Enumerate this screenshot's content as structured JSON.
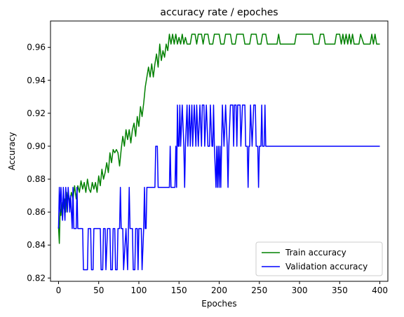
{
  "chart_data": {
    "type": "line",
    "title": "accuracy rate / epoches",
    "xlabel": "Epoches",
    "ylabel": "Accuracy",
    "xlim": [
      -10,
      410
    ],
    "ylim": [
      0.818,
      0.976
    ],
    "xticks": [
      0,
      50,
      100,
      150,
      200,
      250,
      300,
      350,
      400
    ],
    "yticks": [
      0.82,
      0.84,
      0.86,
      0.88,
      0.9,
      0.92,
      0.94,
      0.96
    ],
    "ytick_labels": [
      "0.82",
      "0.84",
      "0.86",
      "0.88",
      "0.90",
      "0.92",
      "0.94",
      "0.96"
    ],
    "grid": false,
    "legend_position": "lower-right",
    "series": [
      {
        "name": "Train accuracy",
        "color": "#008000",
        "points": [
          [
            0,
            0.851
          ],
          [
            1,
            0.841
          ],
          [
            2,
            0.862
          ],
          [
            3,
            0.858
          ],
          [
            4,
            0.866
          ],
          [
            5,
            0.856
          ],
          [
            6,
            0.87
          ],
          [
            7,
            0.862
          ],
          [
            8,
            0.868
          ],
          [
            9,
            0.86
          ],
          [
            10,
            0.872
          ],
          [
            11,
            0.866
          ],
          [
            12,
            0.872
          ],
          [
            14,
            0.866
          ],
          [
            16,
            0.872
          ],
          [
            18,
            0.868
          ],
          [
            20,
            0.876
          ],
          [
            22,
            0.868
          ],
          [
            24,
            0.876
          ],
          [
            26,
            0.872
          ],
          [
            28,
            0.879
          ],
          [
            30,
            0.874
          ],
          [
            32,
            0.878
          ],
          [
            34,
            0.872
          ],
          [
            36,
            0.88
          ],
          [
            38,
            0.874
          ],
          [
            40,
            0.872
          ],
          [
            42,
            0.878
          ],
          [
            44,
            0.874
          ],
          [
            46,
            0.878
          ],
          [
            48,
            0.872
          ],
          [
            50,
            0.882
          ],
          [
            52,
            0.876
          ],
          [
            54,
            0.886
          ],
          [
            56,
            0.88
          ],
          [
            58,
            0.884
          ],
          [
            60,
            0.89
          ],
          [
            62,
            0.884
          ],
          [
            64,
            0.896
          ],
          [
            66,
            0.89
          ],
          [
            68,
            0.898
          ],
          [
            70,
            0.896
          ],
          [
            72,
            0.898
          ],
          [
            74,
            0.896
          ],
          [
            76,
            0.888
          ],
          [
            78,
            0.898
          ],
          [
            80,
            0.906
          ],
          [
            82,
            0.9
          ],
          [
            84,
            0.91
          ],
          [
            86,
            0.904
          ],
          [
            88,
            0.91
          ],
          [
            90,
            0.902
          ],
          [
            92,
            0.91
          ],
          [
            94,
            0.914
          ],
          [
            96,
            0.906
          ],
          [
            98,
            0.918
          ],
          [
            100,
            0.912
          ],
          [
            102,
            0.924
          ],
          [
            104,
            0.918
          ],
          [
            106,
            0.926
          ],
          [
            108,
            0.936
          ],
          [
            110,
            0.942
          ],
          [
            112,
            0.948
          ],
          [
            114,
            0.942
          ],
          [
            116,
            0.95
          ],
          [
            118,
            0.942
          ],
          [
            120,
            0.95
          ],
          [
            122,
            0.956
          ],
          [
            124,
            0.948
          ],
          [
            126,
            0.962
          ],
          [
            128,
            0.952
          ],
          [
            130,
            0.958
          ],
          [
            132,
            0.954
          ],
          [
            134,
            0.962
          ],
          [
            136,
            0.958
          ],
          [
            138,
            0.968
          ],
          [
            140,
            0.962
          ],
          [
            142,
            0.968
          ],
          [
            144,
            0.962
          ],
          [
            146,
            0.968
          ],
          [
            148,
            0.962
          ],
          [
            150,
            0.966
          ],
          [
            152,
            0.962
          ],
          [
            154,
            0.968
          ],
          [
            156,
            0.962
          ],
          [
            158,
            0.966
          ],
          [
            160,
            0.962
          ],
          [
            164,
            0.962
          ],
          [
            166,
            0.968
          ],
          [
            170,
            0.968
          ],
          [
            172,
            0.962
          ],
          [
            174,
            0.968
          ],
          [
            178,
            0.968
          ],
          [
            180,
            0.962
          ],
          [
            182,
            0.968
          ],
          [
            186,
            0.968
          ],
          [
            188,
            0.962
          ],
          [
            192,
            0.962
          ],
          [
            194,
            0.968
          ],
          [
            200,
            0.968
          ],
          [
            202,
            0.962
          ],
          [
            206,
            0.962
          ],
          [
            208,
            0.968
          ],
          [
            214,
            0.968
          ],
          [
            216,
            0.962
          ],
          [
            220,
            0.962
          ],
          [
            222,
            0.968
          ],
          [
            230,
            0.968
          ],
          [
            232,
            0.962
          ],
          [
            238,
            0.962
          ],
          [
            240,
            0.968
          ],
          [
            246,
            0.968
          ],
          [
            248,
            0.962
          ],
          [
            252,
            0.962
          ],
          [
            254,
            0.968
          ],
          [
            258,
            0.968
          ],
          [
            260,
            0.962
          ],
          [
            272,
            0.962
          ],
          [
            274,
            0.968
          ],
          [
            276,
            0.962
          ],
          [
            294,
            0.962
          ],
          [
            296,
            0.968
          ],
          [
            316,
            0.968
          ],
          [
            318,
            0.962
          ],
          [
            324,
            0.962
          ],
          [
            326,
            0.968
          ],
          [
            330,
            0.968
          ],
          [
            332,
            0.962
          ],
          [
            344,
            0.962
          ],
          [
            346,
            0.968
          ],
          [
            350,
            0.968
          ],
          [
            352,
            0.962
          ],
          [
            354,
            0.968
          ],
          [
            356,
            0.962
          ],
          [
            358,
            0.968
          ],
          [
            360,
            0.962
          ],
          [
            362,
            0.968
          ],
          [
            364,
            0.962
          ],
          [
            366,
            0.968
          ],
          [
            368,
            0.962
          ],
          [
            374,
            0.962
          ],
          [
            376,
            0.968
          ],
          [
            380,
            0.962
          ],
          [
            388,
            0.962
          ],
          [
            390,
            0.968
          ],
          [
            392,
            0.962
          ],
          [
            394,
            0.968
          ],
          [
            396,
            0.962
          ],
          [
            400,
            0.962
          ]
        ]
      },
      {
        "name": "Validation accuracy",
        "color": "#0000ff",
        "points": [
          [
            0,
            0.85
          ],
          [
            1,
            0.875
          ],
          [
            2,
            0.86
          ],
          [
            3,
            0.875
          ],
          [
            5,
            0.855
          ],
          [
            6,
            0.875
          ],
          [
            8,
            0.855
          ],
          [
            9,
            0.875
          ],
          [
            11,
            0.86
          ],
          [
            12,
            0.875
          ],
          [
            14,
            0.86
          ],
          [
            15,
            0.87
          ],
          [
            17,
            0.85
          ],
          [
            18,
            0.875
          ],
          [
            19,
            0.85
          ],
          [
            22,
            0.85
          ],
          [
            23,
            0.875
          ],
          [
            24,
            0.85
          ],
          [
            30,
            0.85
          ],
          [
            31,
            0.825
          ],
          [
            36,
            0.825
          ],
          [
            37,
            0.85
          ],
          [
            40,
            0.85
          ],
          [
            41,
            0.825
          ],
          [
            43,
            0.825
          ],
          [
            44,
            0.85
          ],
          [
            52,
            0.85
          ],
          [
            53,
            0.825
          ],
          [
            55,
            0.825
          ],
          [
            56,
            0.85
          ],
          [
            58,
            0.85
          ],
          [
            59,
            0.825
          ],
          [
            61,
            0.85
          ],
          [
            64,
            0.85
          ],
          [
            65,
            0.825
          ],
          [
            67,
            0.825
          ],
          [
            68,
            0.85
          ],
          [
            70,
            0.85
          ],
          [
            71,
            0.825
          ],
          [
            73,
            0.825
          ],
          [
            74,
            0.85
          ],
          [
            76,
            0.85
          ],
          [
            77,
            0.875
          ],
          [
            78,
            0.85
          ],
          [
            80,
            0.85
          ],
          [
            81,
            0.825
          ],
          [
            84,
            0.85
          ],
          [
            86,
            0.825
          ],
          [
            88,
            0.875
          ],
          [
            89,
            0.85
          ],
          [
            92,
            0.85
          ],
          [
            93,
            0.825
          ],
          [
            95,
            0.825
          ],
          [
            96,
            0.85
          ],
          [
            98,
            0.85
          ],
          [
            99,
            0.825
          ],
          [
            100,
            0.85
          ],
          [
            103,
            0.85
          ],
          [
            104,
            0.825
          ],
          [
            106,
            0.85
          ],
          [
            107,
            0.875
          ],
          [
            108,
            0.85
          ],
          [
            109,
            0.85
          ],
          [
            110,
            0.875
          ],
          [
            120,
            0.875
          ],
          [
            121,
            0.9
          ],
          [
            123,
            0.9
          ],
          [
            124,
            0.875
          ],
          [
            138,
            0.875
          ],
          [
            139,
            0.9
          ],
          [
            140,
            0.875
          ],
          [
            145,
            0.875
          ],
          [
            146,
            0.9
          ],
          [
            147,
            0.875
          ],
          [
            148,
            0.925
          ],
          [
            149,
            0.9
          ],
          [
            150,
            0.9
          ],
          [
            151,
            0.925
          ],
          [
            152,
            0.9
          ],
          [
            154,
            0.925
          ],
          [
            156,
            0.9
          ],
          [
            157,
            0.875
          ],
          [
            158,
            0.9
          ],
          [
            160,
            0.925
          ],
          [
            161,
            0.9
          ],
          [
            163,
            0.925
          ],
          [
            164,
            0.9
          ],
          [
            166,
            0.925
          ],
          [
            167,
            0.9
          ],
          [
            169,
            0.925
          ],
          [
            171,
            0.9
          ],
          [
            172,
            0.925
          ],
          [
            174,
            0.9
          ],
          [
            176,
            0.925
          ],
          [
            178,
            0.9
          ],
          [
            179,
            0.925
          ],
          [
            181,
            0.925
          ],
          [
            182,
            0.9
          ],
          [
            184,
            0.925
          ],
          [
            186,
            0.9
          ],
          [
            188,
            0.9
          ],
          [
            189,
            0.925
          ],
          [
            191,
            0.9
          ],
          [
            192,
            0.9
          ],
          [
            193,
            0.925
          ],
          [
            194,
            0.9
          ],
          [
            196,
            0.875
          ],
          [
            197,
            0.9
          ],
          [
            198,
            0.875
          ],
          [
            199,
            0.9
          ],
          [
            200,
            0.875
          ],
          [
            201,
            0.9
          ],
          [
            202,
            0.875
          ],
          [
            204,
            0.925
          ],
          [
            206,
            0.9
          ],
          [
            208,
            0.925
          ],
          [
            210,
            0.9
          ],
          [
            211,
            0.875
          ],
          [
            212,
            0.9
          ],
          [
            214,
            0.925
          ],
          [
            217,
            0.925
          ],
          [
            218,
            0.9
          ],
          [
            219,
            0.925
          ],
          [
            221,
            0.925
          ],
          [
            222,
            0.9
          ],
          [
            223,
            0.925
          ],
          [
            226,
            0.925
          ],
          [
            227,
            0.9
          ],
          [
            229,
            0.925
          ],
          [
            232,
            0.925
          ],
          [
            233,
            0.9
          ],
          [
            235,
            0.9
          ],
          [
            236,
            0.875
          ],
          [
            237,
            0.9
          ],
          [
            238,
            0.9
          ],
          [
            239,
            0.925
          ],
          [
            241,
            0.9
          ],
          [
            243,
            0.925
          ],
          [
            245,
            0.925
          ],
          [
            246,
            0.9
          ],
          [
            248,
            0.9
          ],
          [
            249,
            0.875
          ],
          [
            250,
            0.9
          ],
          [
            252,
            0.9
          ],
          [
            253,
            0.925
          ],
          [
            254,
            0.9
          ],
          [
            256,
            0.9
          ],
          [
            257,
            0.925
          ],
          [
            258,
            0.9
          ],
          [
            400,
            0.9
          ]
        ]
      }
    ]
  }
}
